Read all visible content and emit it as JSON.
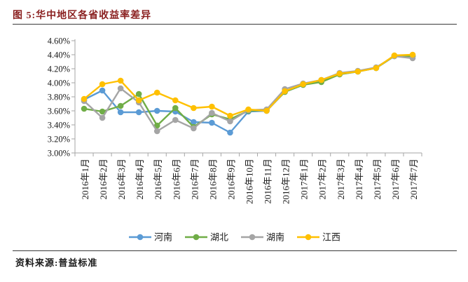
{
  "header": {
    "title_color": "#8a1f1f"
  },
  "footer": {
    "source": "资料来源:普益标准"
  },
  "chart_data": {
    "type": "line",
    "title": "图 5:华中地区各省收益率差异",
    "categories": [
      "2016年1月",
      "2016年2月",
      "2016年3月",
      "2016年4月",
      "2016年5月",
      "2016年6月",
      "2016年7月",
      "2016年8月",
      "2016年9月",
      "2016年10月",
      "2016年11月",
      "2016年12月",
      "2017年1月",
      "2017年2月",
      "2017年3月",
      "2017年4月",
      "2017年5月",
      "2017年6月",
      "2017年7月"
    ],
    "ylim": [
      3.0,
      4.6
    ],
    "ytick_step": 0.2,
    "ytick_labels": [
      "4.60%",
      "4.40%",
      "4.20%",
      "4.00%",
      "3.80%",
      "3.60%",
      "3.40%",
      "3.20%",
      "3.00%"
    ],
    "grid": "off",
    "legend_position": "bottom",
    "axis_color": "#a6a6a6",
    "series": [
      {
        "id": "henan",
        "name": "河南",
        "color": "#5b9bd5",
        "values": [
          3.76,
          3.89,
          3.58,
          3.58,
          3.6,
          3.59,
          3.44,
          3.43,
          3.29,
          3.59,
          3.6,
          3.87,
          3.97,
          4.03,
          4.12,
          4.16,
          4.21,
          4.38,
          4.38
        ]
      },
      {
        "id": "hubei",
        "name": "湖北",
        "color": "#70ad47",
        "values": [
          3.63,
          3.59,
          3.67,
          3.84,
          3.39,
          3.64,
          3.37,
          3.55,
          3.48,
          3.6,
          3.61,
          3.87,
          3.97,
          4.01,
          4.12,
          4.16,
          4.21,
          4.38,
          4.38
        ]
      },
      {
        "id": "hunan",
        "name": "湖南",
        "color": "#a5a5a5",
        "values": [
          3.74,
          3.5,
          3.92,
          3.72,
          3.31,
          3.47,
          3.35,
          3.57,
          3.45,
          3.61,
          3.62,
          3.91,
          3.99,
          4.04,
          4.14,
          4.17,
          4.22,
          4.38,
          4.35
        ]
      },
      {
        "id": "jiangxi",
        "name": "江西",
        "color": "#ffc000",
        "values": [
          3.77,
          3.98,
          4.03,
          3.75,
          3.86,
          3.75,
          3.64,
          3.66,
          3.53,
          3.62,
          3.6,
          3.88,
          3.98,
          4.04,
          4.13,
          4.16,
          4.21,
          4.39,
          4.4
        ]
      }
    ]
  }
}
